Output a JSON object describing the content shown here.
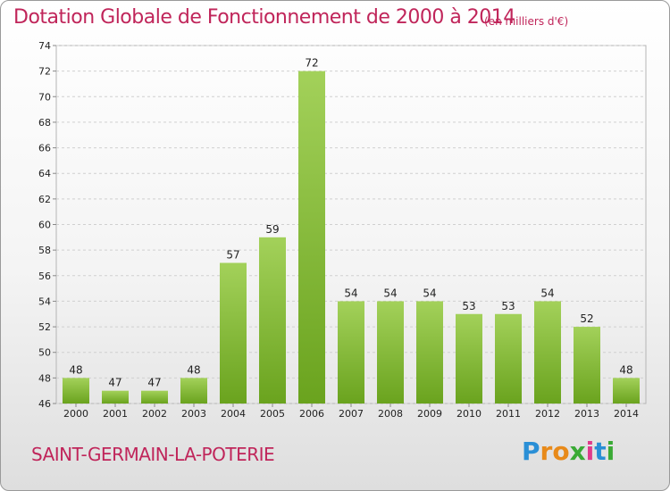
{
  "chart_data": {
    "type": "bar",
    "title": "Dotation Globale de Fonctionnement de 2000 à 2014",
    "subtitle": "(en milliers d'€)",
    "categories": [
      "2000",
      "2001",
      "2002",
      "2003",
      "2004",
      "2005",
      "2006",
      "2007",
      "2008",
      "2009",
      "2010",
      "2011",
      "2012",
      "2013",
      "2014"
    ],
    "values": [
      48,
      47,
      47,
      48,
      57,
      59,
      72,
      54,
      54,
      54,
      53,
      53,
      54,
      52,
      48
    ],
    "ylim": [
      46,
      74
    ],
    "yticks": [
      46,
      48,
      50,
      52,
      54,
      56,
      58,
      60,
      62,
      64,
      66,
      68,
      70,
      72,
      74
    ],
    "grid": true,
    "bar_color_top": "#a3d15a",
    "bar_color_bottom": "#6aa31e"
  },
  "commune": "SAINT-GERMAIN-LA-POTERIE",
  "logo": {
    "letters": [
      "P",
      "r",
      "o",
      "x",
      "i",
      "t",
      "i"
    ],
    "colors": [
      "#2a8fd6",
      "#e88a1a",
      "#e88a1a",
      "#3aaa35",
      "#e03b8b",
      "#2a8fd6",
      "#3aaa35"
    ]
  },
  "colors": {
    "accent": "#c0255a"
  }
}
